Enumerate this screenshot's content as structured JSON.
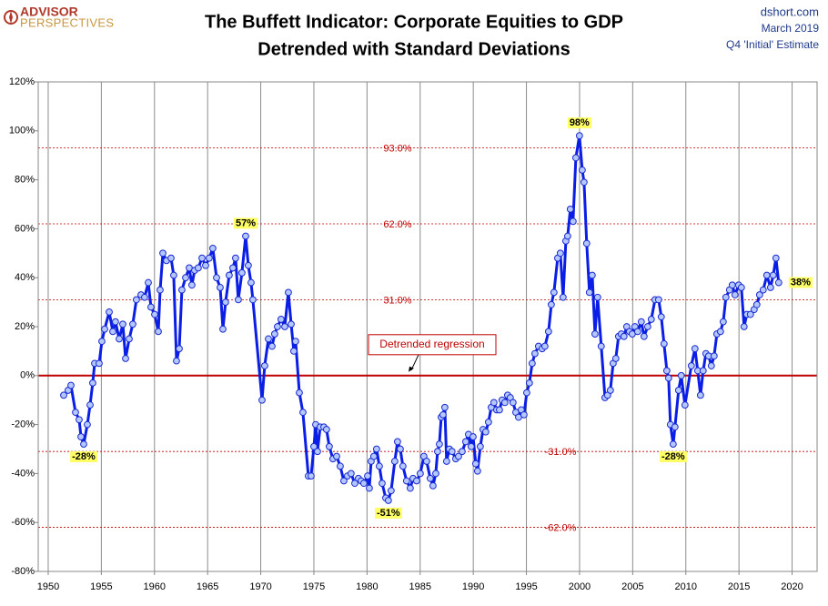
{
  "header": {
    "logo": [
      "ADVISOR",
      "PERSPECTIVES"
    ],
    "source": [
      "dshort.com",
      "March 2019",
      "Q4 'Initial' Estimate"
    ]
  },
  "chart_data": {
    "type": "line",
    "title": [
      "The Buffett Indicator: Corporate Equities to GDP",
      "Detrended with Standard Deviations"
    ],
    "xlim": [
      1949.06,
      2022.35
    ],
    "xticks": [
      1950,
      1955,
      1960,
      1965,
      1970,
      1975,
      1980,
      1985,
      1990,
      1995,
      2000,
      2005,
      2010,
      2015,
      2020
    ],
    "ylim": [
      -80,
      120
    ],
    "yticks": [
      {
        "value": -80,
        "label": "-80%"
      },
      {
        "value": -60,
        "label": "-60%"
      },
      {
        "value": -40,
        "label": "-40%"
      },
      {
        "value": -20,
        "label": "-20%"
      },
      {
        "value": 0,
        "label": "0%"
      },
      {
        "value": 20,
        "label": "20%"
      },
      {
        "value": 40,
        "label": "40%"
      },
      {
        "value": 60,
        "label": "60%"
      },
      {
        "value": 80,
        "label": "80%"
      },
      {
        "value": 100,
        "label": "100%"
      },
      {
        "value": 120,
        "label": "120%"
      }
    ],
    "grid": "x",
    "reference_lines": [
      {
        "value": 93,
        "label": "93.0%"
      },
      {
        "value": 62,
        "label": "62.0%"
      },
      {
        "value": 31,
        "label": "31.0%"
      },
      {
        "value": -31,
        "label": "-31.0%"
      },
      {
        "value": -62,
        "label": "-62.0%"
      }
    ],
    "regression": {
      "value": 0,
      "label": "Detrended regression",
      "color": "#c00000"
    },
    "series": [
      {
        "color": "#0a1ee6",
        "x": [
          1951.46,
          1951.88,
          1952.14,
          1952.57,
          1952.91,
          1953.08,
          1953.34,
          1953.68,
          1953.94,
          1954.19,
          1954.37,
          1954.79,
          1955.05,
          1955.31,
          1955.74,
          1956.08,
          1956.33,
          1956.68,
          1957.02,
          1957.28,
          1957.62,
          1957.96,
          1958.3,
          1958.73,
          1959.07,
          1959.42,
          1959.67,
          1960.02,
          1960.36,
          1960.53,
          1960.79,
          1961.13,
          1961.56,
          1961.81,
          1962.07,
          1962.33,
          1962.58,
          1962.93,
          1963.27,
          1963.52,
          1963.78,
          1964.12,
          1964.47,
          1964.81,
          1965.15,
          1965.49,
          1965.84,
          1966.18,
          1966.44,
          1966.69,
          1967.03,
          1967.38,
          1967.63,
          1967.89,
          1968.23,
          1968.58,
          1968.83,
          1969.09,
          1969.26,
          1970.12,
          1970.37,
          1970.72,
          1971.06,
          1971.31,
          1971.57,
          1971.91,
          1972.26,
          1972.6,
          1972.86,
          1973.11,
          1973.28,
          1973.63,
          1973.97,
          1974.48,
          1974.74,
          1975,
          1975.17,
          1975.34,
          1975.59,
          1975.94,
          1976.19,
          1976.45,
          1976.79,
          1977.14,
          1977.48,
          1977.82,
          1978.16,
          1978.5,
          1978.85,
          1979.19,
          1979.45,
          1979.7,
          1980.05,
          1980.22,
          1980.39,
          1980.64,
          1980.9,
          1981.16,
          1981.42,
          1981.76,
          1982.01,
          1982.27,
          1982.61,
          1982.87,
          1983.13,
          1983.38,
          1983.72,
          1984.07,
          1984.33,
          1984.67,
          1985.01,
          1985.35,
          1985.61,
          1985.95,
          1986.21,
          1986.47,
          1986.64,
          1986.81,
          1986.98,
          1987.15,
          1987.32,
          1987.49,
          1987.75,
          1988,
          1988.35,
          1988.61,
          1988.95,
          1989.29,
          1989.55,
          1989.8,
          1989.98,
          1990.23,
          1990.4,
          1990.66,
          1990.92,
          1991.17,
          1991.43,
          1991.69,
          1991.94,
          1992.2,
          1992.46,
          1992.71,
          1992.97,
          1993.23,
          1993.48,
          1993.74,
          1994,
          1994.26,
          1994.51,
          1994.77,
          1995.03,
          1995.28,
          1995.54,
          1995.8,
          1996.14,
          1996.48,
          1996.74,
          1997.08,
          1997.34,
          1997.59,
          1997.94,
          1998.19,
          1998.45,
          1998.71,
          1998.88,
          1999.13,
          1999.39,
          1999.65,
          1999.99,
          2000.25,
          2000.42,
          2000.67,
          2000.93,
          2001.19,
          2001.45,
          2001.7,
          2002.04,
          2002.39,
          2002.64,
          2002.9,
          2003.16,
          2003.41,
          2003.67,
          2003.93,
          2004.18,
          2004.44,
          2004.7,
          2004.96,
          2005.21,
          2005.47,
          2005.81,
          2006.07,
          2006.41,
          2006.75,
          2007.1,
          2007.44,
          2007.69,
          2007.95,
          2008.21,
          2008.38,
          2008.55,
          2008.81,
          2008.98,
          2009.32,
          2009.57,
          2009.92,
          2010.52,
          2010.86,
          2011.12,
          2011.38,
          2011.63,
          2011.89,
          2012.15,
          2012.4,
          2012.66,
          2012.92,
          2013.26,
          2013.52,
          2013.77,
          2014.11,
          2014.37,
          2014.63,
          2014.97,
          2015.23,
          2015.48,
          2015.74,
          2016.08,
          2016.43,
          2016.68,
          2016.94,
          2017.28,
          2017.62,
          2017.97,
          2018.22,
          2018.48,
          2018.74
        ],
        "values": [
          -8,
          -6,
          -4,
          -15,
          -18,
          -25,
          -28,
          -20,
          -12,
          -3,
          5,
          5,
          14,
          19,
          26,
          18,
          22,
          15,
          21,
          7,
          15,
          21,
          31,
          33,
          32,
          38,
          28,
          25,
          18,
          35,
          50,
          47,
          48,
          41,
          6,
          11,
          35,
          40,
          44,
          37,
          43,
          44,
          48,
          45,
          48,
          52,
          40,
          36,
          19,
          30,
          41,
          44,
          48,
          31,
          42,
          57,
          45,
          38,
          31,
          -10,
          4,
          15,
          12,
          17,
          20,
          23,
          20,
          34,
          21,
          10,
          14,
          -7,
          -15,
          -41,
          -41,
          -29,
          -20,
          -31,
          -21,
          -21,
          -22,
          -29,
          -34,
          -33,
          -37,
          -43,
          -41,
          -40,
          -44,
          -42,
          -43,
          -44,
          -41,
          -46,
          -35,
          -33,
          -30,
          -37,
          -44,
          -50,
          -51,
          -47,
          -35,
          -27,
          -30,
          -37,
          -43,
          -46,
          -42,
          -43,
          -40,
          -33,
          -35,
          -42,
          -45,
          -40,
          -31,
          -28,
          -17,
          -16,
          -13,
          -35,
          -30,
          -31,
          -34,
          -33,
          -31,
          -27,
          -24,
          -29,
          -25,
          -36,
          -39,
          -29,
          -22,
          -23,
          -19,
          -13,
          -11,
          -14,
          -14,
          -10,
          -11,
          -8,
          -9,
          -11,
          -15,
          -17,
          -14,
          -16,
          -7,
          -3,
          5,
          9,
          12,
          11,
          12,
          18,
          29,
          34,
          48,
          50,
          32,
          55,
          57,
          68,
          63,
          89,
          98,
          84,
          79,
          54,
          34,
          41,
          17,
          32,
          12,
          -9,
          -8,
          -6,
          5,
          7,
          16,
          17,
          16,
          20,
          18,
          17,
          20,
          18,
          22,
          16,
          20,
          23,
          31,
          31,
          24,
          13,
          2,
          -1,
          -20,
          -28,
          -21,
          -6,
          0,
          -12,
          4,
          11,
          2,
          -8,
          2,
          9,
          8,
          4,
          8,
          17,
          18,
          22,
          32,
          35,
          37,
          33,
          37,
          36,
          20,
          25,
          25,
          27,
          29,
          33,
          35,
          41,
          36,
          41,
          48,
          38
        ],
        "value_labels": [
          null,
          null,
          null,
          null,
          null,
          null,
          "-28%",
          null,
          null,
          null,
          null,
          null,
          null,
          null,
          null,
          null,
          null,
          null,
          null,
          null,
          null,
          null,
          null,
          null,
          null,
          null,
          null,
          null,
          null,
          null,
          null,
          null,
          null,
          null,
          null,
          null,
          null,
          null,
          null,
          null,
          null,
          null,
          null,
          null,
          null,
          null,
          null,
          null,
          null,
          null,
          null,
          null,
          null,
          null,
          null,
          "57%",
          null,
          null,
          null,
          null,
          null,
          null,
          null,
          null,
          null,
          null,
          null,
          null,
          null,
          null,
          null,
          null,
          null,
          null,
          null,
          null,
          null,
          null,
          null,
          null,
          null,
          null,
          null,
          null,
          null,
          null,
          null,
          null,
          null,
          null,
          null,
          null,
          null,
          null,
          null,
          null,
          null,
          null,
          null,
          null,
          "-51%",
          null,
          null,
          null,
          null,
          null,
          null,
          null,
          null,
          null,
          null,
          null,
          null,
          null,
          null,
          null,
          null,
          null,
          null,
          null,
          null,
          null,
          null,
          null,
          null,
          null,
          null,
          null,
          null,
          null,
          null,
          null,
          null,
          null,
          null,
          null,
          null,
          null,
          null,
          null,
          null,
          null,
          null,
          null,
          null,
          null,
          null,
          null,
          null,
          null,
          null,
          null,
          null,
          null,
          null,
          null,
          null,
          null,
          null,
          null,
          null,
          null,
          null,
          null,
          null,
          null,
          null,
          null,
          "98%",
          null,
          null,
          null,
          null,
          null,
          null,
          null,
          null,
          null,
          null,
          null,
          null,
          null,
          null,
          null,
          null,
          null,
          null,
          null,
          null,
          null,
          null,
          null,
          null,
          null,
          null,
          null,
          null,
          null,
          null,
          null,
          null,
          "-28%",
          null,
          null,
          null,
          null,
          null,
          null,
          null,
          null,
          null,
          null,
          null,
          null,
          null,
          null,
          null,
          null,
          null,
          null,
          null,
          null,
          null,
          null,
          null,
          null,
          null,
          null,
          null,
          null,
          null,
          null,
          null,
          null,
          null,
          "38%"
        ]
      }
    ]
  }
}
